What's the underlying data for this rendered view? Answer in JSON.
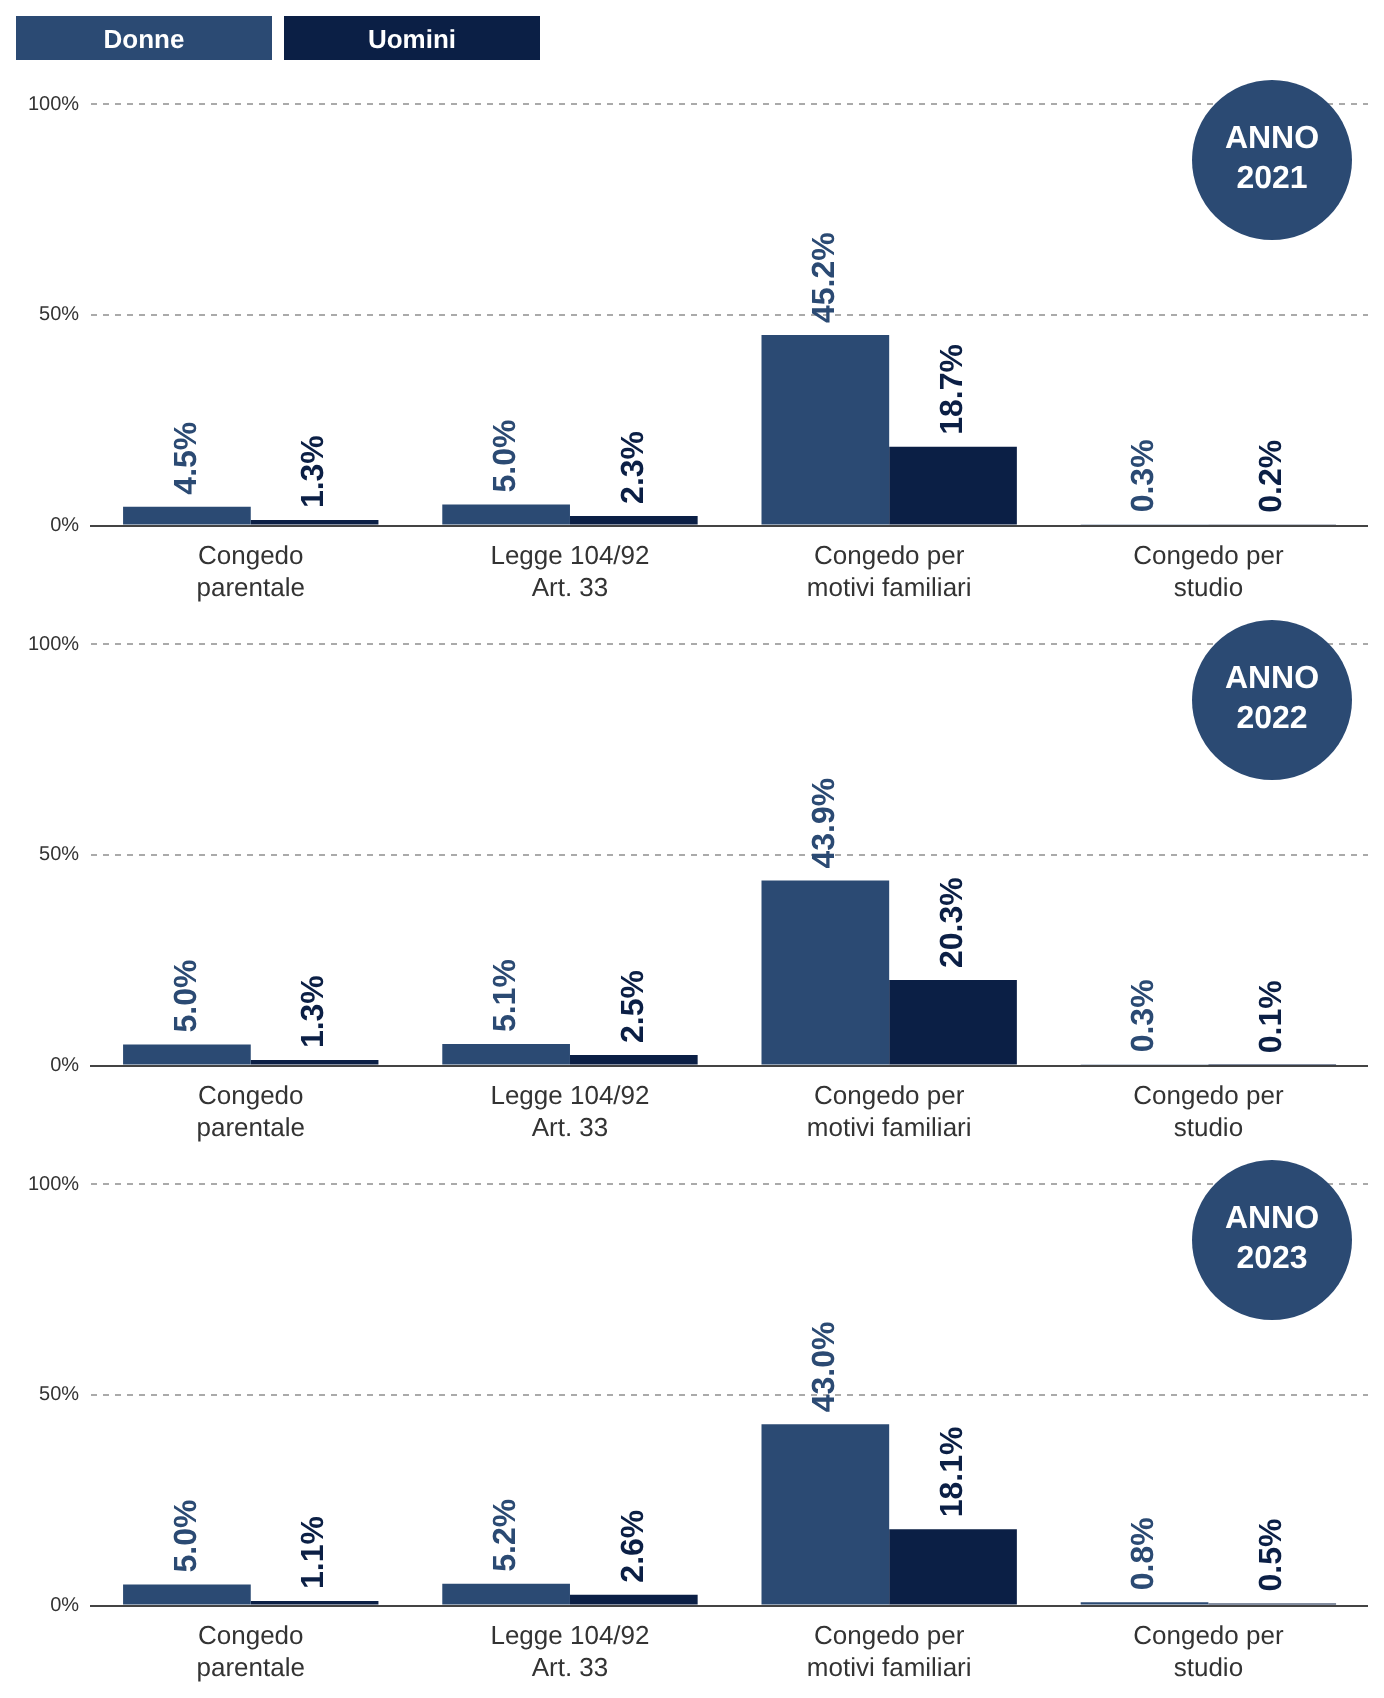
{
  "chart_data": [
    {
      "type": "bar",
      "title": "ANNO 2021",
      "categories": [
        "Congedo parentale",
        "Legge 104/92 Art. 33",
        "Congedo per motivi familiari",
        "Congedo per studio"
      ],
      "series": [
        {
          "name": "Donne",
          "color": "#2b4a73",
          "values": [
            4.5,
            5.0,
            45.2,
            0.3
          ],
          "value_labels": [
            "4.5%",
            "5.0%",
            "45.2%",
            "0.3%"
          ]
        },
        {
          "name": "Uomini",
          "color": "#0b1f45",
          "values": [
            1.3,
            2.3,
            18.7,
            0.2
          ],
          "value_labels": [
            "1.3%",
            "2.3%",
            "18.7%",
            "0.2%"
          ]
        }
      ],
      "ylim": [
        0,
        100
      ],
      "yticks": [
        {
          "value": 0,
          "label": "0%"
        },
        {
          "value": 50,
          "label": "50%"
        },
        {
          "value": 100,
          "label": "100%"
        }
      ],
      "grid": "y",
      "legend": "top left"
    },
    {
      "type": "bar",
      "title": "ANNO 2022",
      "categories": [
        "Congedo parentale",
        "Legge 104/92 Art. 33",
        "Congedo per motivi familiari",
        "Congedo per studio"
      ],
      "series": [
        {
          "color": "#2b4a73",
          "values": [
            5.0,
            5.1,
            43.9,
            0.3
          ],
          "value_labels": [
            "5.0%",
            "5.1%",
            "43.9%",
            "0.3%"
          ]
        },
        {
          "color": "#0b1f45",
          "values": [
            1.3,
            2.5,
            20.3,
            0.1
          ],
          "value_labels": [
            "1.3%",
            "2.5%",
            "20.3%",
            "0.1%"
          ]
        }
      ],
      "ylim": [
        0,
        100
      ],
      "yticks": [
        {
          "value": 0,
          "label": "0%"
        },
        {
          "value": 50,
          "label": "50%"
        },
        {
          "value": 100,
          "label": "100%"
        }
      ],
      "grid": "y"
    },
    {
      "type": "bar",
      "title": "ANNO 2023",
      "categories": [
        "Congedo parentale",
        "Legge 104/92 Art. 33",
        "Congedo per motivi familiari",
        "Congedo per studio"
      ],
      "series": [
        {
          "color": "#2b4a73",
          "values": [
            5.0,
            5.2,
            43.0,
            0.8
          ],
          "value_labels": [
            "5.0%",
            "5.2%",
            "43.0%",
            "0.8%"
          ]
        },
        {
          "color": "#0b1f45",
          "values": [
            1.1,
            2.6,
            18.1,
            0.5
          ],
          "value_labels": [
            "1.1%",
            "2.6%",
            "18.1%",
            "0.5%"
          ]
        }
      ],
      "ylim": [
        0,
        100
      ],
      "yticks": [
        {
          "value": 0,
          "label": "0%"
        },
        {
          "value": 50,
          "label": "50%"
        },
        {
          "value": 100,
          "label": "100%"
        }
      ],
      "grid": "y"
    }
  ]
}
